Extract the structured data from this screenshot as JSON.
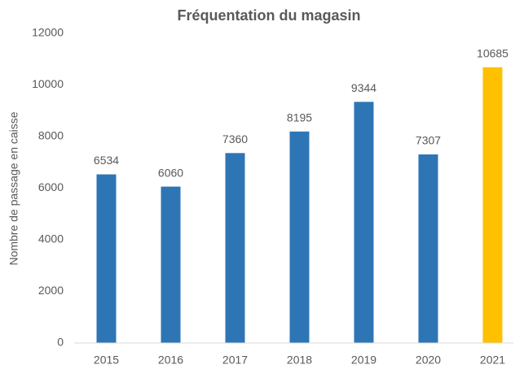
{
  "chart_data": {
    "type": "bar",
    "title": "Fréquentation du magasin",
    "y_label": "Nombre de passage en caisse",
    "categories": [
      "2015",
      "2016",
      "2017",
      "2018",
      "2019",
      "2020",
      "2021"
    ],
    "values": [
      6534,
      6060,
      7360,
      8195,
      9344,
      7307,
      10685
    ],
    "colors": [
      "#2e75b6",
      "#2e75b6",
      "#2e75b6",
      "#2e75b6",
      "#2e75b6",
      "#2e75b6",
      "#ffc000"
    ],
    "ylim": [
      0,
      12000
    ],
    "yticks": [
      0,
      2000,
      4000,
      6000,
      8000,
      10000,
      12000
    ],
    "grid": false
  }
}
